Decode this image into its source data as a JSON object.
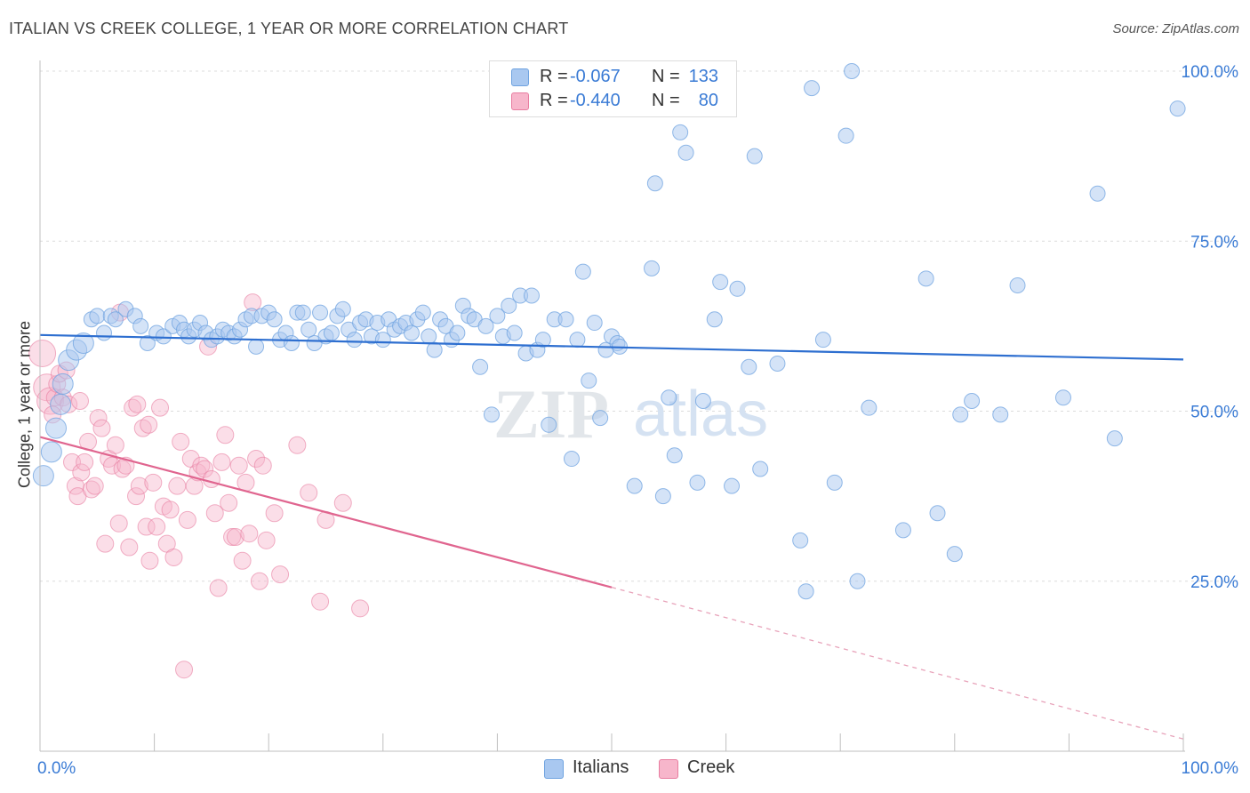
{
  "title": "ITALIAN VS CREEK COLLEGE, 1 YEAR OR MORE CORRELATION CHART",
  "source": "Source: ZipAtlas.com",
  "watermark": {
    "zip": "ZIP",
    "atlas": "atlas"
  },
  "legend": {
    "rows": [
      {
        "r_label": "R =",
        "r_value": "-0.067",
        "n_label": "N =",
        "n_value": "133",
        "color": "#a9c8f0"
      },
      {
        "r_label": "R =",
        "r_value": "-0.440",
        "n_label": "N =",
        "n_value": "80",
        "color": "#f7b6cb"
      }
    ]
  },
  "bottom_legend": [
    "Italians",
    "Creek"
  ],
  "chart_data": {
    "type": "scatter",
    "title": "ITALIAN VS CREEK COLLEGE, 1 YEAR OR MORE CORRELATION CHART",
    "xlabel": "",
    "ylabel": "College, 1 year or more",
    "xlim": [
      0,
      100
    ],
    "ylim": [
      0,
      100
    ],
    "x_tick_labels": [
      "0.0%",
      "100.0%"
    ],
    "y_tick_labels": [
      "25.0%",
      "50.0%",
      "75.0%",
      "100.0%"
    ],
    "y_ticks": [
      25,
      50,
      75,
      100
    ],
    "grid": true,
    "legend_position": "top-center",
    "series": [
      {
        "name": "Italians",
        "color": "#6fa3e0",
        "fill": "#a9c8f0",
        "trend": {
          "x": [
            0,
            100
          ],
          "y": [
            61.2,
            57.6
          ],
          "style": "solid"
        },
        "points": [
          [
            0.3,
            40.5
          ],
          [
            1.0,
            44
          ],
          [
            1.4,
            47.5
          ],
          [
            1.8,
            51
          ],
          [
            2.0,
            54
          ],
          [
            2.5,
            57.5
          ],
          [
            3.2,
            59
          ],
          [
            3.8,
            60
          ],
          [
            4.5,
            63.5
          ],
          [
            5.0,
            64
          ],
          [
            5.6,
            61.5
          ],
          [
            6.2,
            64
          ],
          [
            6.6,
            63.5
          ],
          [
            7.5,
            65
          ],
          [
            8.3,
            64
          ],
          [
            8.8,
            62.5
          ],
          [
            9.4,
            60
          ],
          [
            10.2,
            61.5
          ],
          [
            10.8,
            61
          ],
          [
            11.6,
            62.5
          ],
          [
            12.2,
            63
          ],
          [
            12.6,
            62
          ],
          [
            13.0,
            61
          ],
          [
            13.5,
            62
          ],
          [
            14.0,
            63
          ],
          [
            14.5,
            61.5
          ],
          [
            15.0,
            60.5
          ],
          [
            15.5,
            61
          ],
          [
            16.0,
            62
          ],
          [
            16.5,
            61.5
          ],
          [
            17.0,
            61
          ],
          [
            17.5,
            62
          ],
          [
            18.0,
            63.5
          ],
          [
            18.5,
            64
          ],
          [
            18.9,
            59.5
          ],
          [
            19.4,
            64
          ],
          [
            20.0,
            64.5
          ],
          [
            20.5,
            63.5
          ],
          [
            21.0,
            60.5
          ],
          [
            21.5,
            61.5
          ],
          [
            22.0,
            60
          ],
          [
            22.5,
            64.5
          ],
          [
            23.0,
            64.5
          ],
          [
            23.5,
            62
          ],
          [
            24.0,
            60
          ],
          [
            24.5,
            64.5
          ],
          [
            25.0,
            61
          ],
          [
            25.5,
            61.5
          ],
          [
            26.0,
            64
          ],
          [
            26.5,
            65
          ],
          [
            27.0,
            62
          ],
          [
            27.5,
            60.5
          ],
          [
            28.0,
            63
          ],
          [
            28.5,
            63.5
          ],
          [
            29.0,
            61
          ],
          [
            29.5,
            63
          ],
          [
            30.0,
            60.5
          ],
          [
            30.5,
            63.5
          ],
          [
            31.0,
            62
          ],
          [
            31.5,
            62.5
          ],
          [
            32.0,
            63
          ],
          [
            32.5,
            61.5
          ],
          [
            33.0,
            63.5
          ],
          [
            33.5,
            64.5
          ],
          [
            34.0,
            61
          ],
          [
            34.5,
            59
          ],
          [
            35.0,
            63.5
          ],
          [
            35.5,
            62.5
          ],
          [
            36.0,
            60.5
          ],
          [
            36.5,
            61.5
          ],
          [
            37.0,
            65.5
          ],
          [
            37.5,
            64
          ],
          [
            38.0,
            63.5
          ],
          [
            38.5,
            56.5
          ],
          [
            39.0,
            62.5
          ],
          [
            39.5,
            49.5
          ],
          [
            40.0,
            64
          ],
          [
            40.5,
            61
          ],
          [
            41.0,
            65.5
          ],
          [
            41.5,
            61.5
          ],
          [
            42.0,
            67
          ],
          [
            42.5,
            58.5
          ],
          [
            43.0,
            67
          ],
          [
            43.5,
            59
          ],
          [
            44.0,
            60.5
          ],
          [
            44.5,
            48
          ],
          [
            45.0,
            63.5
          ],
          [
            46.0,
            63.5
          ],
          [
            46.5,
            43
          ],
          [
            47.0,
            60.5
          ],
          [
            47.5,
            70.5
          ],
          [
            48.0,
            54.5
          ],
          [
            48.5,
            63
          ],
          [
            49.0,
            49
          ],
          [
            49.5,
            59
          ],
          [
            50.0,
            61
          ],
          [
            50.5,
            60
          ],
          [
            50.7,
            59.5
          ],
          [
            52.0,
            39
          ],
          [
            53.5,
            71
          ],
          [
            53.8,
            83.5
          ],
          [
            54.5,
            37.5
          ],
          [
            55.0,
            52
          ],
          [
            55.5,
            43.5
          ],
          [
            56.0,
            91
          ],
          [
            56.5,
            88
          ],
          [
            57.5,
            39.5
          ],
          [
            58.0,
            51.5
          ],
          [
            59.0,
            63.5
          ],
          [
            59.5,
            69
          ],
          [
            60.5,
            39
          ],
          [
            61.0,
            68
          ],
          [
            62.0,
            56.5
          ],
          [
            62.5,
            87.5
          ],
          [
            63.0,
            41.5
          ],
          [
            64.5,
            57
          ],
          [
            66.5,
            31
          ],
          [
            67.0,
            23.5
          ],
          [
            67.5,
            97.5
          ],
          [
            68.5,
            60.5
          ],
          [
            69.5,
            39.5
          ],
          [
            70.5,
            90.5
          ],
          [
            71.0,
            100
          ],
          [
            71.5,
            25
          ],
          [
            72.5,
            50.5
          ],
          [
            75.5,
            32.5
          ],
          [
            77.5,
            69.5
          ],
          [
            78.5,
            35
          ],
          [
            80.0,
            29
          ],
          [
            80.5,
            49.5
          ],
          [
            81.5,
            51.5
          ],
          [
            84.0,
            49.5
          ],
          [
            85.5,
            68.5
          ],
          [
            89.5,
            52
          ],
          [
            92.5,
            82
          ],
          [
            94.0,
            46
          ],
          [
            99.5,
            94.5
          ]
        ]
      },
      {
        "name": "Creek",
        "color": "#e87da0",
        "fill": "#f7b6cb",
        "trend": {
          "x": [
            0,
            50,
            100
          ],
          "y": [
            46.2,
            24.1,
            1.8
          ],
          "style": "solid-then-dashed"
        },
        "points": [
          [
            0.2,
            58.5
          ],
          [
            0.6,
            53.5
          ],
          [
            0.9,
            51.5
          ],
          [
            1.1,
            49.5
          ],
          [
            1.3,
            52
          ],
          [
            1.5,
            54
          ],
          [
            1.7,
            55.5
          ],
          [
            2.0,
            52
          ],
          [
            2.3,
            56
          ],
          [
            2.5,
            51
          ],
          [
            2.8,
            42.5
          ],
          [
            3.1,
            39
          ],
          [
            3.3,
            37.5
          ],
          [
            3.6,
            41
          ],
          [
            3.9,
            42.5
          ],
          [
            4.2,
            45.5
          ],
          [
            4.5,
            38.5
          ],
          [
            4.8,
            39
          ],
          [
            5.1,
            49
          ],
          [
            5.4,
            47.5
          ],
          [
            5.7,
            30.5
          ],
          [
            6.0,
            43
          ],
          [
            6.3,
            42
          ],
          [
            6.6,
            45
          ],
          [
            6.9,
            33.5
          ],
          [
            7.2,
            41.5
          ],
          [
            7.5,
            42
          ],
          [
            7.8,
            30
          ],
          [
            8.1,
            50.5
          ],
          [
            8.4,
            37.5
          ],
          [
            8.7,
            39
          ],
          [
            9.0,
            47.5
          ],
          [
            9.3,
            33
          ],
          [
            9.6,
            28
          ],
          [
            9.9,
            39.5
          ],
          [
            10.2,
            33
          ],
          [
            10.5,
            50.5
          ],
          [
            10.8,
            36
          ],
          [
            11.1,
            30.5
          ],
          [
            11.4,
            35.5
          ],
          [
            11.7,
            28.5
          ],
          [
            12.0,
            39
          ],
          [
            12.3,
            45.5
          ],
          [
            12.6,
            12
          ],
          [
            12.9,
            34
          ],
          [
            13.2,
            43
          ],
          [
            13.5,
            39
          ],
          [
            13.8,
            41
          ],
          [
            14.1,
            42
          ],
          [
            14.4,
            41.5
          ],
          [
            14.7,
            59.5
          ],
          [
            15.0,
            40
          ],
          [
            15.3,
            35
          ],
          [
            15.6,
            24
          ],
          [
            15.9,
            42.5
          ],
          [
            16.2,
            46.5
          ],
          [
            16.5,
            36.5
          ],
          [
            16.8,
            31.5
          ],
          [
            17.1,
            31.5
          ],
          [
            17.4,
            42
          ],
          [
            17.7,
            28
          ],
          [
            18.0,
            39.5
          ],
          [
            18.3,
            32
          ],
          [
            18.6,
            66
          ],
          [
            18.9,
            43
          ],
          [
            19.2,
            25
          ],
          [
            19.5,
            42
          ],
          [
            19.8,
            31
          ],
          [
            20.5,
            35
          ],
          [
            21.0,
            26
          ],
          [
            22.5,
            45
          ],
          [
            23.5,
            38
          ],
          [
            24.5,
            22
          ],
          [
            25.0,
            34
          ],
          [
            26.5,
            36.5
          ],
          [
            28.0,
            21
          ],
          [
            7.0,
            64.5
          ],
          [
            8.5,
            51
          ],
          [
            9.5,
            48
          ],
          [
            3.5,
            51.5
          ]
        ]
      }
    ]
  }
}
